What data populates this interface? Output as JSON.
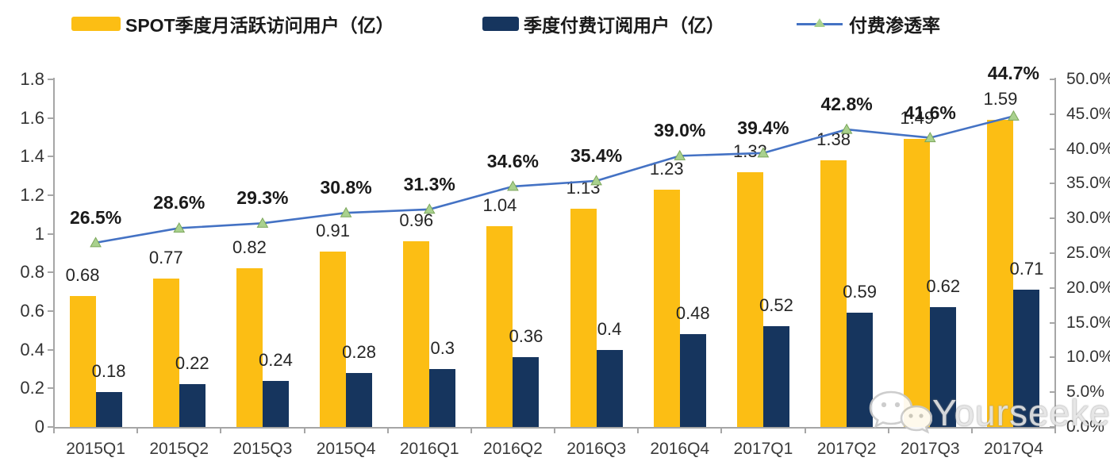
{
  "legend": [
    {
      "label": "SPOT季度月活跃访问用户（亿）",
      "type": "bar",
      "color": "#FCBE14"
    },
    {
      "label": "季度付费订阅用户（亿）",
      "type": "bar",
      "color": "#16355E"
    },
    {
      "label": "付费渗透率",
      "type": "line",
      "color": "#4472C4",
      "marker_color": "#A9D18E"
    }
  ],
  "chart_data": {
    "type": "bar+line",
    "categories": [
      "2015Q1",
      "2015Q2",
      "2015Q3",
      "2015Q4",
      "2016Q1",
      "2016Q2",
      "2016Q3",
      "2016Q4",
      "2017Q1",
      "2017Q2",
      "2017Q3",
      "2017Q4"
    ],
    "series": [
      {
        "name": "SPOT季度月活跃访问用户（亿）",
        "type": "bar",
        "axis": "left",
        "color": "#FCBE14",
        "values": [
          0.68,
          0.77,
          0.82,
          0.91,
          0.96,
          1.04,
          1.13,
          1.23,
          1.32,
          1.38,
          1.49,
          1.59
        ],
        "labels": [
          "0.68",
          "0.77",
          "0.82",
          "0.91",
          "0.96",
          "1.04",
          "1.13",
          "1.23",
          "1.32",
          "1.38",
          "1.49",
          "1.59"
        ]
      },
      {
        "name": "季度付费订阅用户（亿）",
        "type": "bar",
        "axis": "left",
        "color": "#16355E",
        "values": [
          0.18,
          0.22,
          0.24,
          0.28,
          0.3,
          0.36,
          0.4,
          0.48,
          0.52,
          0.59,
          0.62,
          0.71
        ],
        "labels": [
          "0.18",
          "0.22",
          "0.24",
          "0.28",
          "0.3",
          "0.36",
          "0.4",
          "0.48",
          "0.52",
          "0.59",
          "0.62",
          "0.71"
        ]
      },
      {
        "name": "付费渗透率",
        "type": "line",
        "axis": "right",
        "color": "#4472C4",
        "marker": "triangle",
        "marker_color": "#A9D18E",
        "values": [
          26.5,
          28.6,
          29.3,
          30.8,
          31.3,
          34.6,
          35.4,
          39.0,
          39.4,
          42.8,
          41.6,
          44.7
        ],
        "labels": [
          "26.5%",
          "28.6%",
          "29.3%",
          "30.8%",
          "31.3%",
          "34.6%",
          "35.4%",
          "39.0%",
          "39.4%",
          "42.8%",
          "41.6%",
          "44.7%"
        ]
      }
    ],
    "left_axis": {
      "min": 0,
      "max": 1.8,
      "ticks": [
        "0",
        "0.2",
        "0.4",
        "0.6",
        "0.8",
        "1",
        "1.2",
        "1.4",
        "1.6",
        "1.8"
      ]
    },
    "right_axis": {
      "min": 0,
      "max": 50,
      "ticks": [
        "0.0%",
        "5.0%",
        "10.0%",
        "15.0%",
        "20.0%",
        "25.0%",
        "30.0%",
        "35.0%",
        "40.0%",
        "45.0%",
        "50.0%"
      ]
    },
    "grid": false,
    "legend_position": "top"
  },
  "watermark": {
    "text": "Yourseeker",
    "icon": "wechat-icon"
  }
}
